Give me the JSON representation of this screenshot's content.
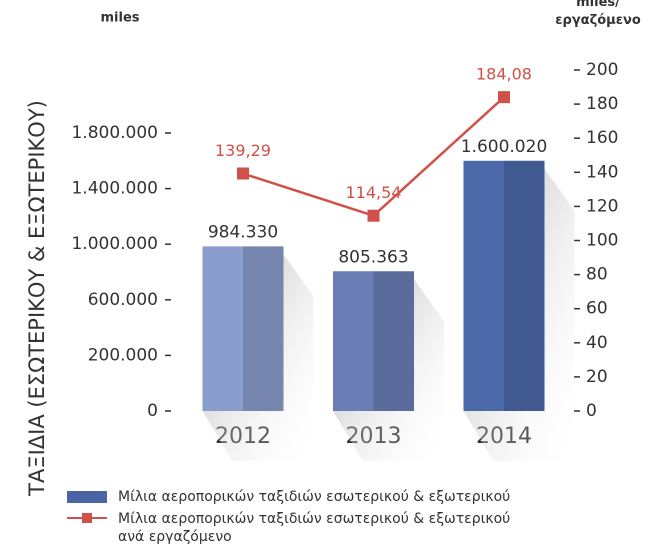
{
  "chart_data": {
    "type": "bar_line",
    "y_label": "ΤΑΞΙΔΙΑ (ΕΣΩΤΕΡΙΚΟΥ & ΕΞΩΤΕΡΙΚΟΥ)",
    "y_unit": "miles",
    "y2_unit": "miles/ εργαζόμενο",
    "categories": [
      "2012",
      "2013",
      "2014"
    ],
    "series": [
      {
        "name": "Μίλια αεροπορικών ταξιδιών εσωτερικού & εξωτερικού",
        "type": "bar",
        "color": "#4a64a5",
        "colors": [
          "#8a9dcc",
          "#6a7db5",
          "#4b68a8"
        ],
        "values": [
          984330,
          805363,
          1600020
        ],
        "value_labels": [
          "984.330",
          "805.363",
          "1.600.020"
        ]
      },
      {
        "name": "Μίλια αεροπορικών ταξιδιών εσωτερικού & εξωτερικού ανά εργαζόμενο",
        "type": "line",
        "axis": "y2",
        "color": "#d0514a",
        "values": [
          139.29,
          114.54,
          184.08
        ],
        "value_labels": [
          "139,29",
          "114,54",
          "184,08"
        ]
      }
    ],
    "ylim": [
      0,
      1800000
    ],
    "yticks": [
      0,
      {
        "value": 200000,
        "label": "200.000"
      },
      {
        "value": 600000,
        "label": "600.000"
      },
      {
        "value": 1000000,
        "label": "1.000.000"
      },
      {
        "value": 1400000,
        "label": "1.400.000"
      },
      {
        "value": 1800000,
        "label": "1.800.000"
      }
    ],
    "y2lim": [
      0,
      200
    ],
    "y2ticks": [
      0,
      20,
      40,
      60,
      80,
      100,
      120,
      140,
      160,
      180,
      200
    ]
  }
}
